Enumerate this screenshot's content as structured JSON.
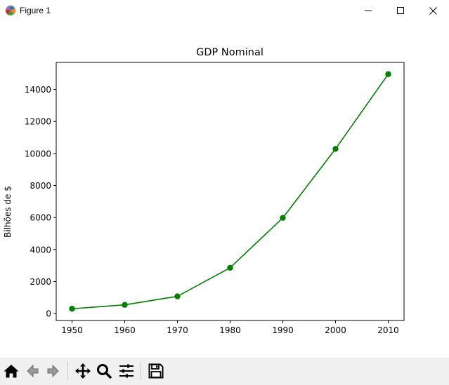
{
  "window": {
    "title": "Figure 1"
  },
  "toolbar": {
    "buttons": [
      {
        "name": "home-icon"
      },
      {
        "name": "back-icon"
      },
      {
        "name": "forward-icon"
      },
      {
        "name": "pan-icon"
      },
      {
        "name": "zoom-icon"
      },
      {
        "name": "configure-subplots-icon"
      },
      {
        "name": "save-icon"
      }
    ]
  },
  "chart_data": {
    "type": "line",
    "title": "GDP Nominal",
    "xlabel": "",
    "ylabel": "Bilhões de $",
    "x": [
      1950,
      1960,
      1970,
      1980,
      1990,
      2000,
      2010
    ],
    "series": [
      {
        "values": [
          300,
          543,
          1075,
          2862,
          5979,
          10289,
          14958
        ],
        "color": "#008000",
        "marker": "circle"
      }
    ],
    "xticks": [
      "1950",
      "1960",
      "1970",
      "1980",
      "1990",
      "2000",
      "2010"
    ],
    "yticks": [
      "0",
      "2000",
      "4000",
      "6000",
      "8000",
      "10000",
      "12000",
      "14000"
    ],
    "xlim": [
      1947,
      2013
    ],
    "ylim": [
      -433,
      15691
    ],
    "grid": false
  }
}
